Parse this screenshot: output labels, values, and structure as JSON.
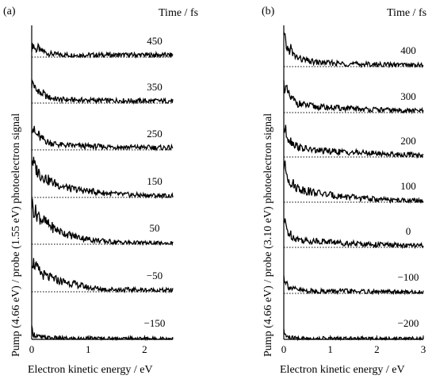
{
  "chart_data": [
    {
      "type": "line",
      "panel_label": "(a)",
      "time_header": "Time / fs",
      "xlabel": "Electron kinetic energy / eV",
      "ylabel": "Pump (4.66 eV) / probe (1.55 eV)  photoelectron signal",
      "xlim": [
        0,
        2.5
      ],
      "xticks": [
        "0",
        "1",
        "2"
      ],
      "xtick_values": [
        0,
        1,
        2
      ],
      "series": [
        {
          "name": "450",
          "points": [
            [
              0.0,
              1.3
            ],
            [
              0.03,
              1.8
            ],
            [
              0.06,
              1.1
            ],
            [
              0.09,
              1.0
            ],
            [
              0.12,
              1.4
            ],
            [
              0.15,
              0.8
            ],
            [
              0.2,
              0.9
            ],
            [
              0.25,
              0.6
            ],
            [
              0.3,
              0.5
            ],
            [
              0.4,
              0.4
            ],
            [
              0.5,
              0.35
            ],
            [
              0.7,
              0.3
            ],
            [
              1.0,
              0.3
            ],
            [
              1.3,
              0.3
            ],
            [
              1.6,
              0.3
            ],
            [
              2.0,
              0.3
            ],
            [
              2.3,
              0.3
            ],
            [
              2.5,
              0.3
            ]
          ]
        },
        {
          "name": "350",
          "points": [
            [
              0.0,
              2.6
            ],
            [
              0.03,
              2.9
            ],
            [
              0.06,
              2.0
            ],
            [
              0.09,
              1.6
            ],
            [
              0.12,
              2.0
            ],
            [
              0.15,
              1.2
            ],
            [
              0.2,
              1.4
            ],
            [
              0.25,
              1.0
            ],
            [
              0.3,
              0.8
            ],
            [
              0.4,
              0.6
            ],
            [
              0.5,
              0.5
            ],
            [
              0.7,
              0.45
            ],
            [
              1.0,
              0.4
            ],
            [
              1.3,
              0.35
            ],
            [
              1.6,
              0.35
            ],
            [
              2.0,
              0.3
            ],
            [
              2.3,
              0.3
            ],
            [
              2.5,
              0.3
            ]
          ]
        },
        {
          "name": "250",
          "points": [
            [
              0.0,
              3.3
            ],
            [
              0.03,
              3.0
            ],
            [
              0.06,
              2.3
            ],
            [
              0.09,
              2.0
            ],
            [
              0.12,
              2.2
            ],
            [
              0.15,
              1.6
            ],
            [
              0.2,
              1.5
            ],
            [
              0.25,
              1.3
            ],
            [
              0.3,
              1.0
            ],
            [
              0.4,
              0.9
            ],
            [
              0.5,
              0.7
            ],
            [
              0.7,
              0.6
            ],
            [
              1.0,
              0.5
            ],
            [
              1.3,
              0.45
            ],
            [
              1.6,
              0.4
            ],
            [
              2.0,
              0.35
            ],
            [
              2.3,
              0.3
            ],
            [
              2.5,
              0.3
            ]
          ]
        },
        {
          "name": "150",
          "points": [
            [
              0.0,
              5.5
            ],
            [
              0.03,
              4.8
            ],
            [
              0.06,
              4.2
            ],
            [
              0.09,
              3.8
            ],
            [
              0.12,
              3.6
            ],
            [
              0.15,
              3.2
            ],
            [
              0.2,
              3.0
            ],
            [
              0.25,
              2.7
            ],
            [
              0.3,
              2.4
            ],
            [
              0.4,
              2.0
            ],
            [
              0.5,
              1.7
            ],
            [
              0.7,
              1.2
            ],
            [
              1.0,
              0.9
            ],
            [
              1.3,
              0.6
            ],
            [
              1.6,
              0.4
            ],
            [
              2.0,
              0.3
            ],
            [
              2.3,
              0.25
            ],
            [
              2.5,
              0.2
            ]
          ]
        },
        {
          "name": "50",
          "points": [
            [
              0.0,
              5.8
            ],
            [
              0.03,
              5.0
            ],
            [
              0.06,
              4.5
            ],
            [
              0.09,
              4.3
            ],
            [
              0.12,
              4.0
            ],
            [
              0.15,
              3.7
            ],
            [
              0.2,
              3.4
            ],
            [
              0.25,
              3.0
            ],
            [
              0.3,
              2.7
            ],
            [
              0.4,
              2.2
            ],
            [
              0.5,
              1.8
            ],
            [
              0.7,
              1.2
            ],
            [
              1.0,
              0.7
            ],
            [
              1.3,
              0.4
            ],
            [
              1.6,
              0.25
            ],
            [
              2.0,
              0.15
            ],
            [
              2.3,
              0.1
            ],
            [
              2.5,
              0.1
            ]
          ]
        },
        {
          "name": "−50",
          "points": [
            [
              0.0,
              4.4
            ],
            [
              0.03,
              4.1
            ],
            [
              0.06,
              3.8
            ],
            [
              0.09,
              3.2
            ],
            [
              0.12,
              3.0
            ],
            [
              0.15,
              2.7
            ],
            [
              0.2,
              2.4
            ],
            [
              0.25,
              2.2
            ],
            [
              0.3,
              2.0
            ],
            [
              0.4,
              1.8
            ],
            [
              0.5,
              1.5
            ],
            [
              0.7,
              1.2
            ],
            [
              1.0,
              0.6
            ],
            [
              1.3,
              0.35
            ],
            [
              1.6,
              0.3
            ],
            [
              2.0,
              0.25
            ],
            [
              2.3,
              0.2
            ],
            [
              2.5,
              0.2
            ]
          ]
        },
        {
          "name": "−150",
          "points": [
            [
              0.0,
              1.4
            ],
            [
              0.03,
              0.8
            ],
            [
              0.06,
              0.6
            ],
            [
              0.09,
              0.5
            ],
            [
              0.12,
              0.4
            ],
            [
              0.15,
              0.3
            ],
            [
              0.2,
              0.25
            ],
            [
              0.3,
              0.2
            ],
            [
              0.5,
              0.15
            ],
            [
              0.7,
              0.1
            ],
            [
              1.0,
              0.1
            ],
            [
              1.3,
              0.1
            ],
            [
              1.6,
              0.1
            ],
            [
              2.0,
              0.1
            ],
            [
              2.3,
              0.1
            ],
            [
              2.5,
              0.1
            ]
          ]
        }
      ]
    },
    {
      "type": "line",
      "panel_label": "(b)",
      "time_header": "Time / fs",
      "xlabel": "Electron kinetic energy / eV",
      "ylabel": "Pump (4.66 eV) / probe (3.10 eV)  photoelectron signal",
      "xlim": [
        0,
        3
      ],
      "xticks": [
        "0",
        "1",
        "2",
        "3"
      ],
      "xtick_values": [
        0,
        1,
        2,
        3
      ],
      "series": [
        {
          "name": "400",
          "points": [
            [
              0.0,
              4.3
            ],
            [
              0.05,
              3.0
            ],
            [
              0.1,
              2.2
            ],
            [
              0.15,
              2.6
            ],
            [
              0.2,
              1.6
            ],
            [
              0.25,
              1.5
            ],
            [
              0.3,
              1.2
            ],
            [
              0.4,
              1.0
            ],
            [
              0.5,
              0.8
            ],
            [
              0.7,
              0.6
            ],
            [
              1.0,
              0.5
            ],
            [
              1.3,
              0.4
            ],
            [
              1.6,
              0.35
            ],
            [
              2.0,
              0.3
            ],
            [
              2.5,
              0.25
            ],
            [
              3.0,
              0.2
            ]
          ]
        },
        {
          "name": "300",
          "points": [
            [
              0.0,
              3.9
            ],
            [
              0.05,
              3.2
            ],
            [
              0.1,
              2.5
            ],
            [
              0.15,
              2.0
            ],
            [
              0.2,
              1.8
            ],
            [
              0.25,
              1.5
            ],
            [
              0.3,
              1.3
            ],
            [
              0.4,
              1.1
            ],
            [
              0.5,
              1.0
            ],
            [
              0.7,
              0.8
            ],
            [
              1.0,
              0.7
            ],
            [
              1.3,
              0.6
            ],
            [
              1.6,
              0.5
            ],
            [
              2.0,
              0.4
            ],
            [
              2.5,
              0.3
            ],
            [
              3.0,
              0.25
            ]
          ]
        },
        {
          "name": "200",
          "points": [
            [
              0.0,
              4.1
            ],
            [
              0.05,
              3.4
            ],
            [
              0.1,
              2.7
            ],
            [
              0.15,
              2.3
            ],
            [
              0.2,
              2.0
            ],
            [
              0.25,
              1.7
            ],
            [
              0.3,
              1.5
            ],
            [
              0.4,
              1.2
            ],
            [
              0.5,
              1.1
            ],
            [
              0.7,
              0.9
            ],
            [
              1.0,
              0.8
            ],
            [
              1.3,
              0.7
            ],
            [
              1.6,
              0.6
            ],
            [
              2.0,
              0.5
            ],
            [
              2.5,
              0.35
            ],
            [
              3.0,
              0.3
            ]
          ]
        },
        {
          "name": "100",
          "points": [
            [
              0.0,
              5.2
            ],
            [
              0.05,
              4.3
            ],
            [
              0.1,
              3.4
            ],
            [
              0.15,
              2.9
            ],
            [
              0.2,
              2.5
            ],
            [
              0.25,
              2.2
            ],
            [
              0.3,
              2.0
            ],
            [
              0.4,
              1.8
            ],
            [
              0.5,
              1.6
            ],
            [
              0.7,
              1.3
            ],
            [
              1.0,
              1.0
            ],
            [
              1.3,
              0.8
            ],
            [
              1.6,
              0.6
            ],
            [
              2.0,
              0.4
            ],
            [
              2.5,
              0.25
            ],
            [
              3.0,
              0.2
            ]
          ]
        },
        {
          "name": "0",
          "points": [
            [
              0.0,
              3.8
            ],
            [
              0.05,
              2.9
            ],
            [
              0.1,
              2.0
            ],
            [
              0.15,
              1.8
            ],
            [
              0.2,
              1.5
            ],
            [
              0.25,
              1.3
            ],
            [
              0.3,
              1.2
            ],
            [
              0.4,
              1.0
            ],
            [
              0.5,
              0.9
            ],
            [
              0.7,
              0.9
            ],
            [
              1.0,
              0.8
            ],
            [
              1.3,
              0.6
            ],
            [
              1.6,
              0.5
            ],
            [
              2.0,
              0.4
            ],
            [
              2.5,
              0.3
            ],
            [
              3.0,
              0.2
            ]
          ]
        },
        {
          "name": "−100",
          "points": [
            [
              0.0,
              2.3
            ],
            [
              0.05,
              1.6
            ],
            [
              0.1,
              1.0
            ],
            [
              0.15,
              0.8
            ],
            [
              0.2,
              0.6
            ],
            [
              0.3,
              0.5
            ],
            [
              0.4,
              0.4
            ],
            [
              0.5,
              0.35
            ],
            [
              0.7,
              0.3
            ],
            [
              1.0,
              0.3
            ],
            [
              1.3,
              0.3
            ],
            [
              1.6,
              0.25
            ],
            [
              2.0,
              0.2
            ],
            [
              2.5,
              0.2
            ],
            [
              3.0,
              0.15
            ]
          ]
        },
        {
          "name": "−200",
          "points": [
            [
              0.0,
              1.0
            ],
            [
              0.05,
              0.5
            ],
            [
              0.1,
              0.3
            ],
            [
              0.15,
              0.2
            ],
            [
              0.3,
              0.15
            ],
            [
              0.5,
              0.1
            ],
            [
              1.0,
              0.1
            ],
            [
              1.5,
              0.1
            ],
            [
              2.0,
              0.1
            ],
            [
              2.5,
              0.1
            ],
            [
              3.0,
              0.1
            ]
          ]
        }
      ]
    }
  ]
}
